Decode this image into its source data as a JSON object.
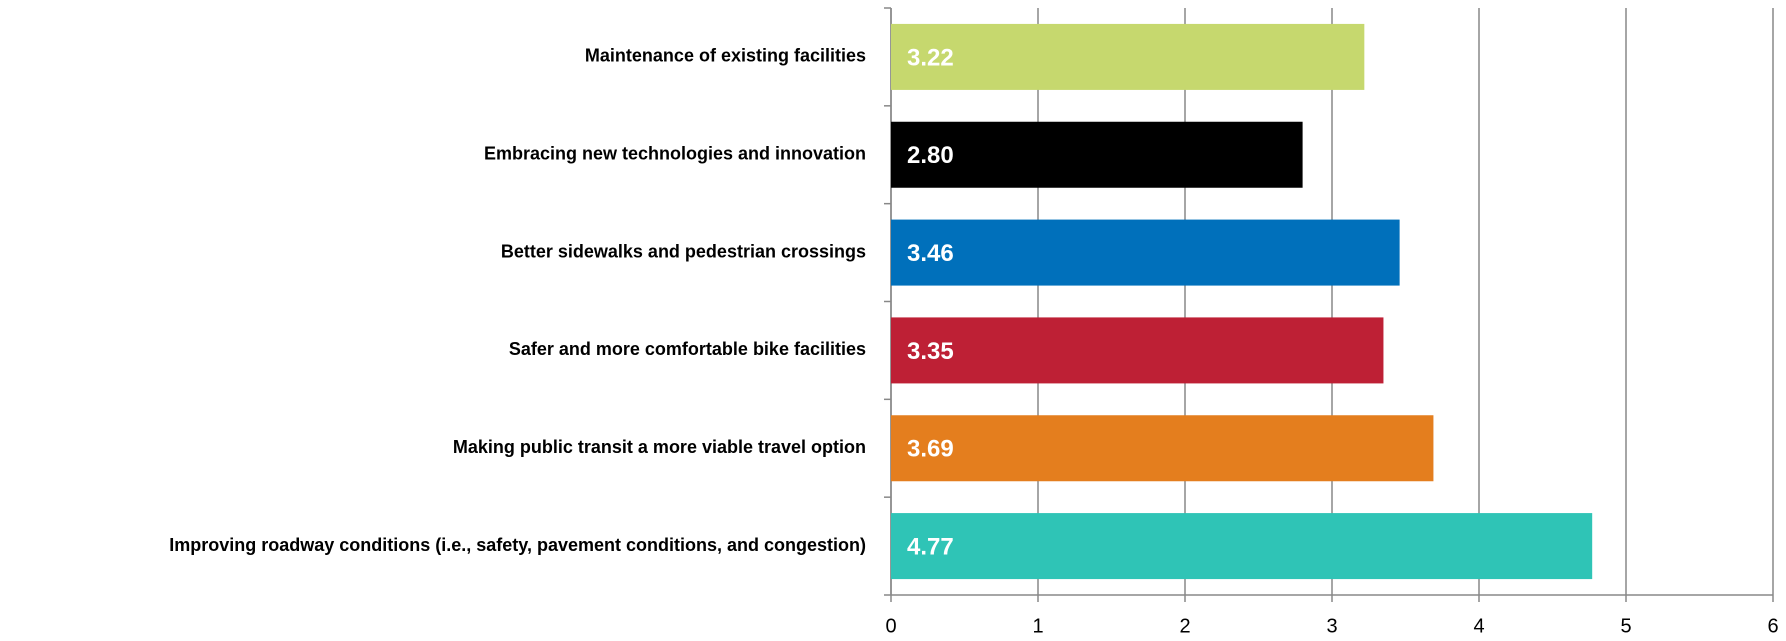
{
  "chart_data": {
    "type": "hbar",
    "categories": [
      "Maintenance of existing facilities",
      "Embracing new technologies and innovation",
      "Better sidewalks and pedestrian crossings",
      "Safer and more comfortable bike facilities",
      "Making public transit a more viable travel option",
      "Improving  roadway conditions (i.e., safety, pavement conditions, and congestion)"
    ],
    "values": [
      3.22,
      2.8,
      3.46,
      3.35,
      3.69,
      4.77
    ],
    "value_labels": [
      "3.22",
      "2.80",
      "3.46",
      "3.35",
      "3.69",
      "4.77"
    ],
    "colors": [
      "#c6d86e",
      "#000000",
      "#0070bb",
      "#be2035",
      "#e47e1e",
      "#2fc4b6"
    ],
    "xlim": [
      0,
      6
    ],
    "xticks": [
      0,
      1,
      2,
      3,
      4,
      5,
      6
    ],
    "grid": true
  }
}
